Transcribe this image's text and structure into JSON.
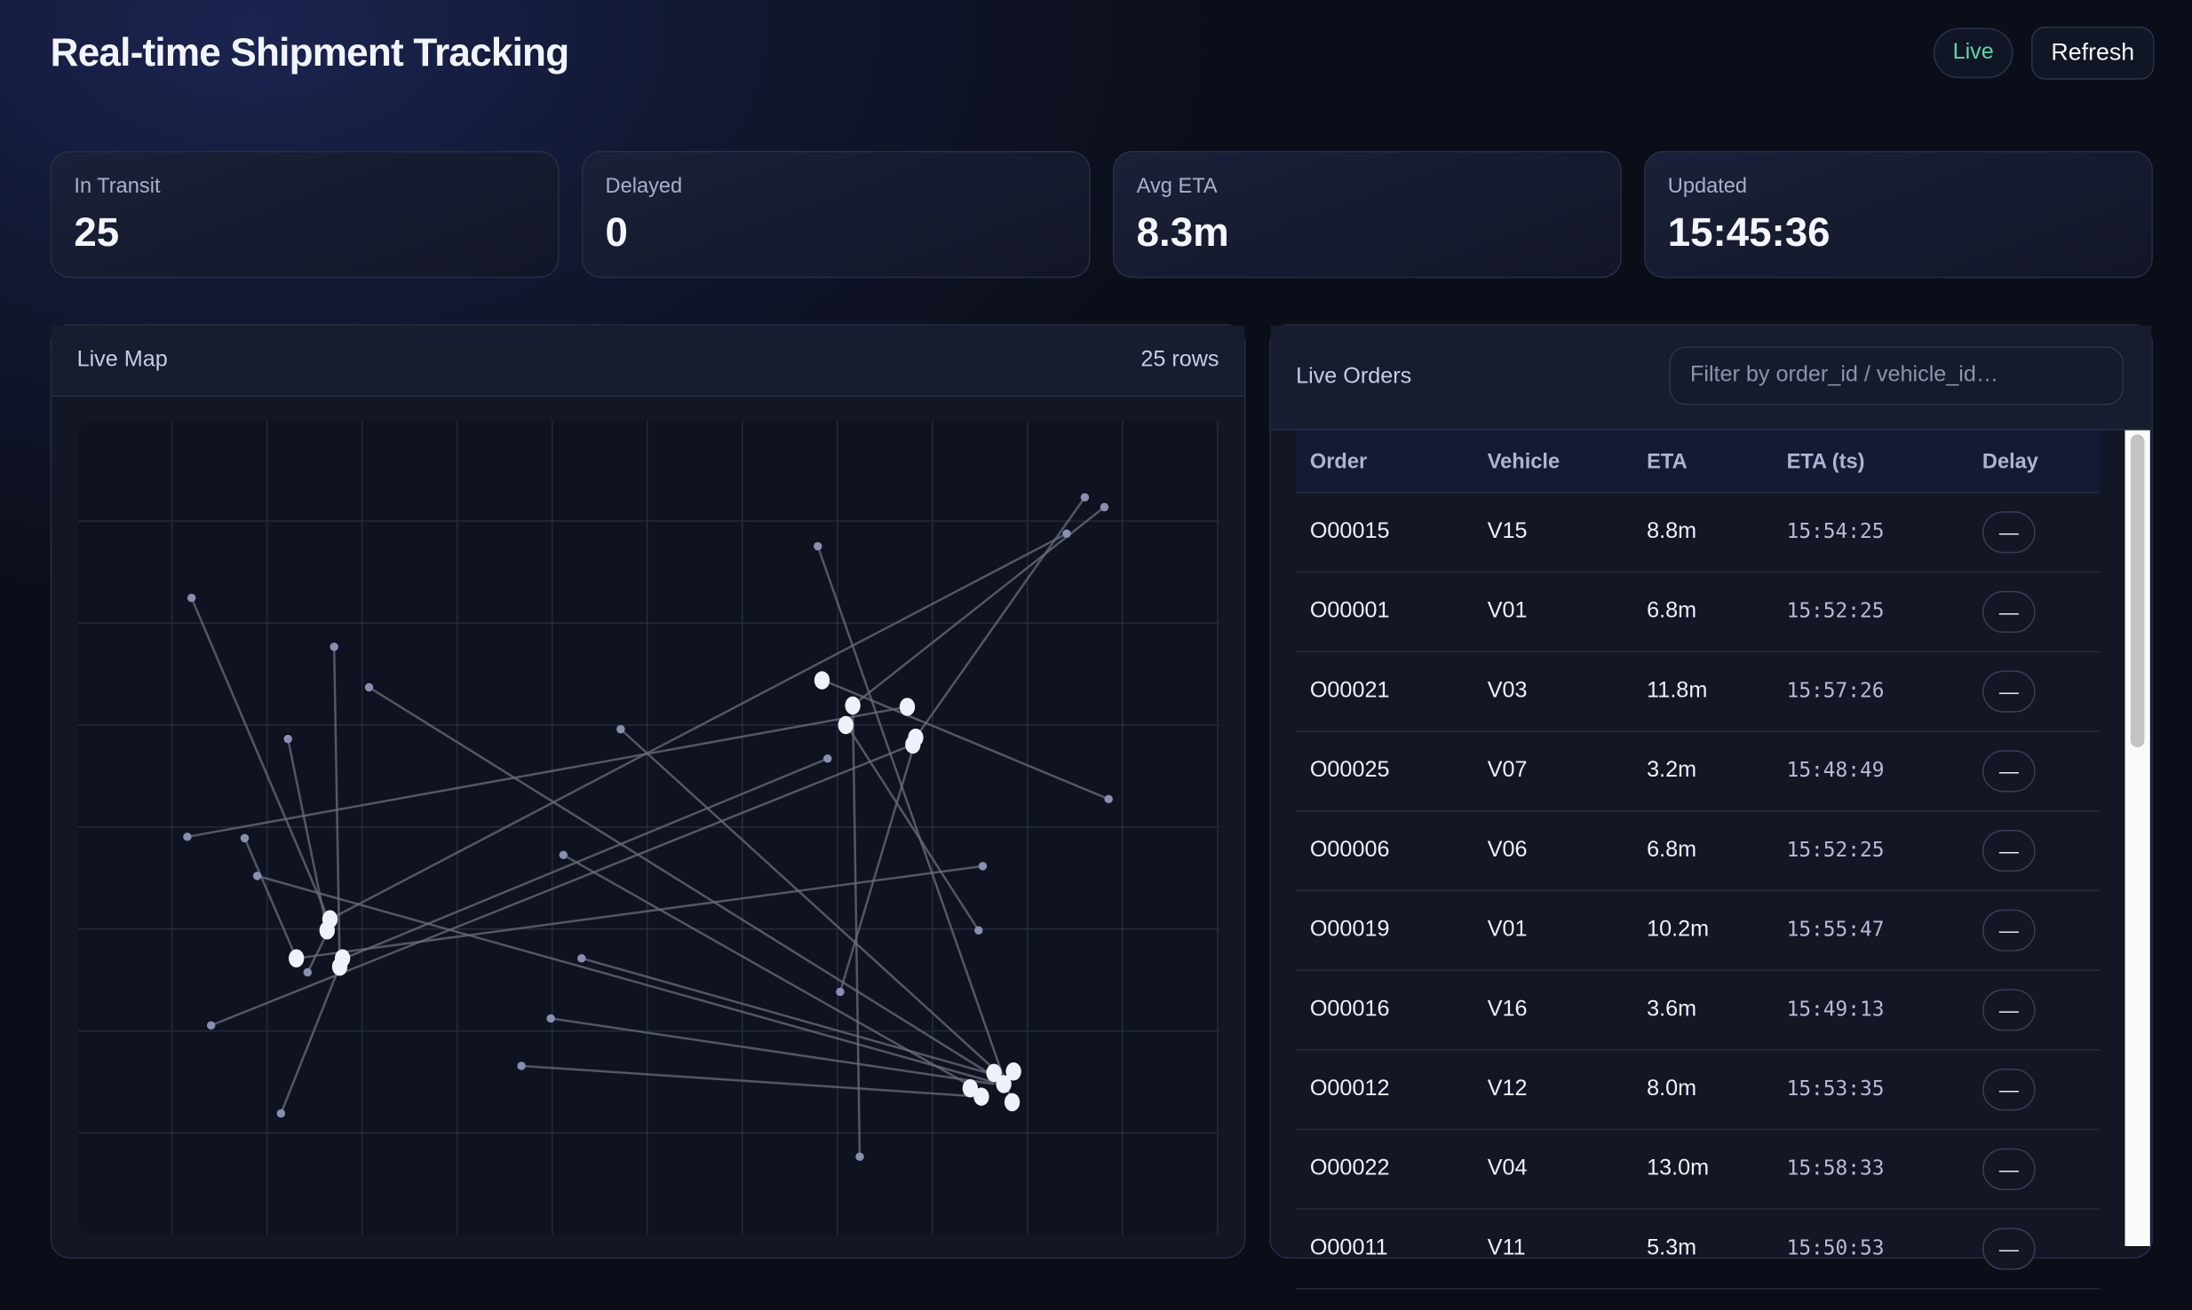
{
  "header": {
    "title": "Real-time Shipment Tracking",
    "live_label": "Live",
    "refresh_label": "Refresh"
  },
  "kpis": [
    {
      "label": "In Transit",
      "value": "25"
    },
    {
      "label": "Delayed",
      "value": "0"
    },
    {
      "label": "Avg ETA",
      "value": "8.3m"
    },
    {
      "label": "Updated",
      "value": "15:45:36"
    }
  ],
  "map": {
    "title": "Live Map",
    "row_count": "25 rows"
  },
  "orders": {
    "title": "Live Orders",
    "filter_placeholder": "Filter by order_id / vehicle_id…",
    "columns": [
      "Order",
      "Vehicle",
      "ETA",
      "ETA (ts)",
      "Delay"
    ],
    "rows": [
      [
        "O00015",
        "V15",
        "8.8m",
        "15:54:25",
        "—"
      ],
      [
        "O00001",
        "V01",
        "6.8m",
        "15:52:25",
        "—"
      ],
      [
        "O00021",
        "V03",
        "11.8m",
        "15:57:26",
        "—"
      ],
      [
        "O00025",
        "V07",
        "3.2m",
        "15:48:49",
        "—"
      ],
      [
        "O00006",
        "V06",
        "6.8m",
        "15:52:25",
        "—"
      ],
      [
        "O00019",
        "V01",
        "10.2m",
        "15:55:47",
        "—"
      ],
      [
        "O00016",
        "V16",
        "3.6m",
        "15:49:13",
        "—"
      ],
      [
        "O00012",
        "V12",
        "8.0m",
        "15:53:35",
        "—"
      ],
      [
        "O00022",
        "V04",
        "13.0m",
        "15:58:33",
        "—"
      ],
      [
        "O00011",
        "V11",
        "5.3m",
        "15:50:53",
        "—"
      ]
    ]
  },
  "colors": {
    "accent_live": "#5fd4a8",
    "background": "#0b0e19",
    "panel": "#121625"
  }
}
